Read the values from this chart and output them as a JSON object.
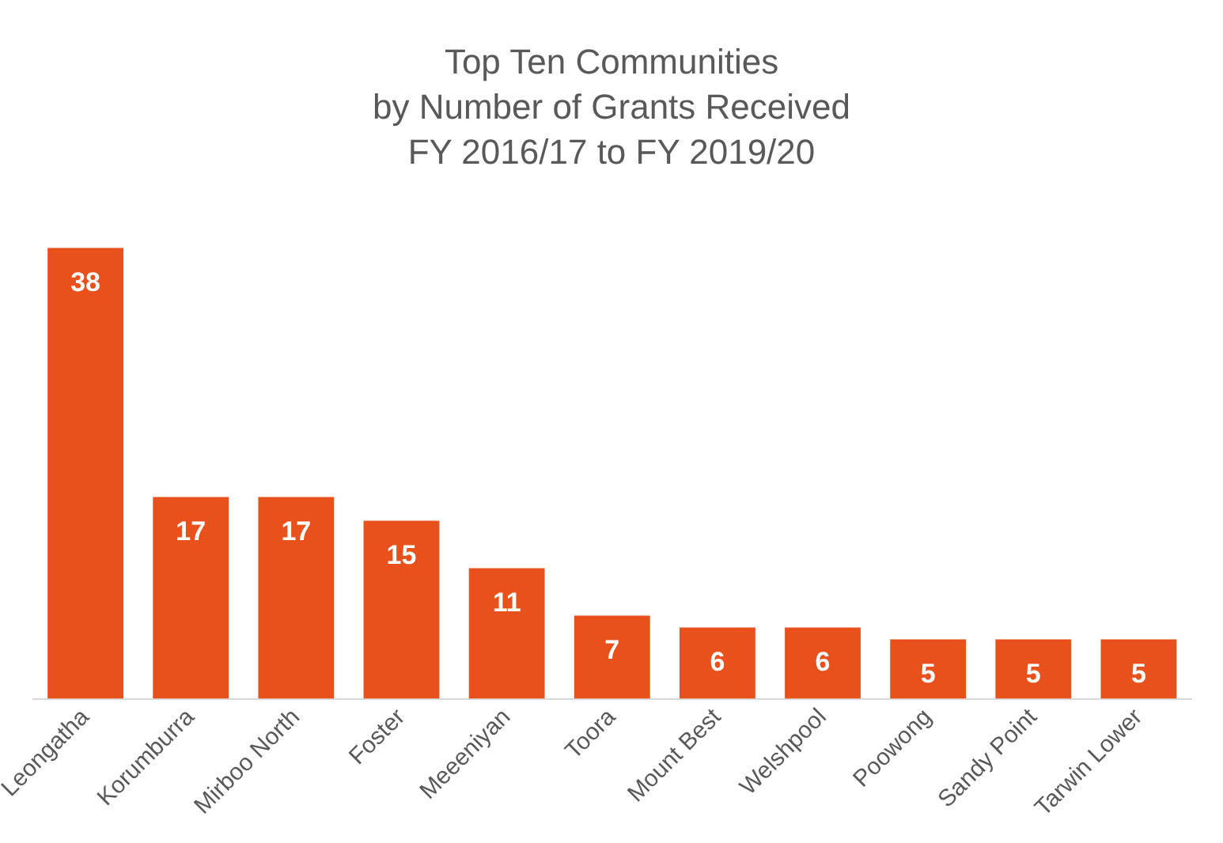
{
  "chart_data": {
    "type": "bar",
    "title": "Top Ten Communities\nby Number of Grants Received\nFY 2016/17 to FY 2019/20",
    "categories": [
      "Leongatha",
      "Korumburra",
      "Mirboo North",
      "Foster",
      "Meeeniyan",
      "Toora",
      "Mount Best",
      "Welshpool",
      "Poowong",
      "Sandy Point",
      "Tarwin Lower"
    ],
    "values": [
      38,
      17,
      17,
      15,
      11,
      7,
      6,
      6,
      5,
      5,
      5
    ],
    "color": "#e8501c",
    "data_labels": true,
    "grid": false,
    "legend": false,
    "tick_labels": "x"
  }
}
